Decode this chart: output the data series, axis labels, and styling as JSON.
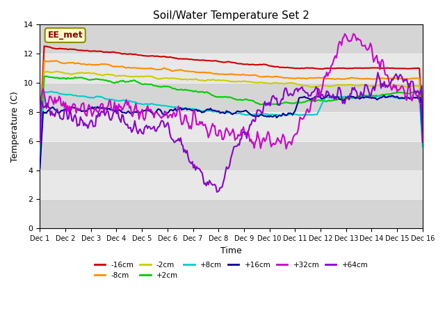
{
  "title": "Soil/Water Temperature Set 2",
  "xlabel": "Time",
  "ylabel": "Temperature (C)",
  "ylim": [
    0,
    14
  ],
  "xlim": [
    0,
    15
  ],
  "xtick_labels": [
    "Dec 1",
    "Dec 2",
    "Dec 3",
    "Dec 4",
    "Dec 5",
    "Dec 6",
    "Dec 7",
    "Dec 8",
    "Dec 9",
    "Dec 10",
    "Dec 11",
    "Dec 12",
    "Dec 13",
    "Dec 14",
    "Dec 15",
    "Dec 16"
  ],
  "ytick_labels": [
    "0",
    "2",
    "4",
    "6",
    "8",
    "10",
    "12",
    "14"
  ],
  "ytick_vals": [
    0,
    2,
    4,
    6,
    8,
    10,
    12,
    14
  ],
  "watermark_text": "EE_met",
  "gray_bands": [
    [
      8,
      12
    ]
  ],
  "series": {
    "-16cm": {
      "color": "#cc0000",
      "lw": 1.8
    },
    "-8cm": {
      "color": "#ff8c00",
      "lw": 1.8
    },
    "-2cm": {
      "color": "#cccc00",
      "lw": 1.8
    },
    "+2cm": {
      "color": "#00cc00",
      "lw": 1.8
    },
    "+8cm": {
      "color": "#00cccc",
      "lw": 1.8
    },
    "+16cm": {
      "color": "#000099",
      "lw": 1.8
    },
    "+32cm": {
      "color": "#cc00cc",
      "lw": 1.8
    },
    "+64cm": {
      "color": "#8800cc",
      "lw": 1.8
    }
  },
  "legend_cols": 4,
  "background_color": "#ffffff",
  "plot_bg_color": "#e8e8e8"
}
